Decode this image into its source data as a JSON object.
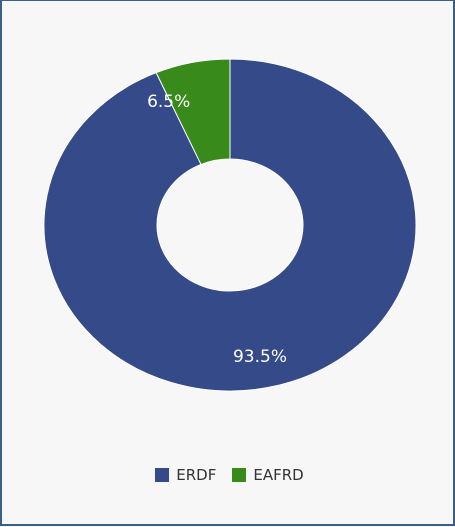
{
  "chart_data": {
    "type": "pie",
    "variant": "donut",
    "categories": [
      "ERDF",
      "EAFRD"
    ],
    "values": [
      93.5,
      6.5
    ],
    "labels": [
      "93.5%",
      "6.5%"
    ],
    "colors": [
      "#344a89",
      "#388a1a"
    ],
    "legend_position": "bottom",
    "background": "#f7f7f7",
    "border_color": "#3b5f86"
  }
}
